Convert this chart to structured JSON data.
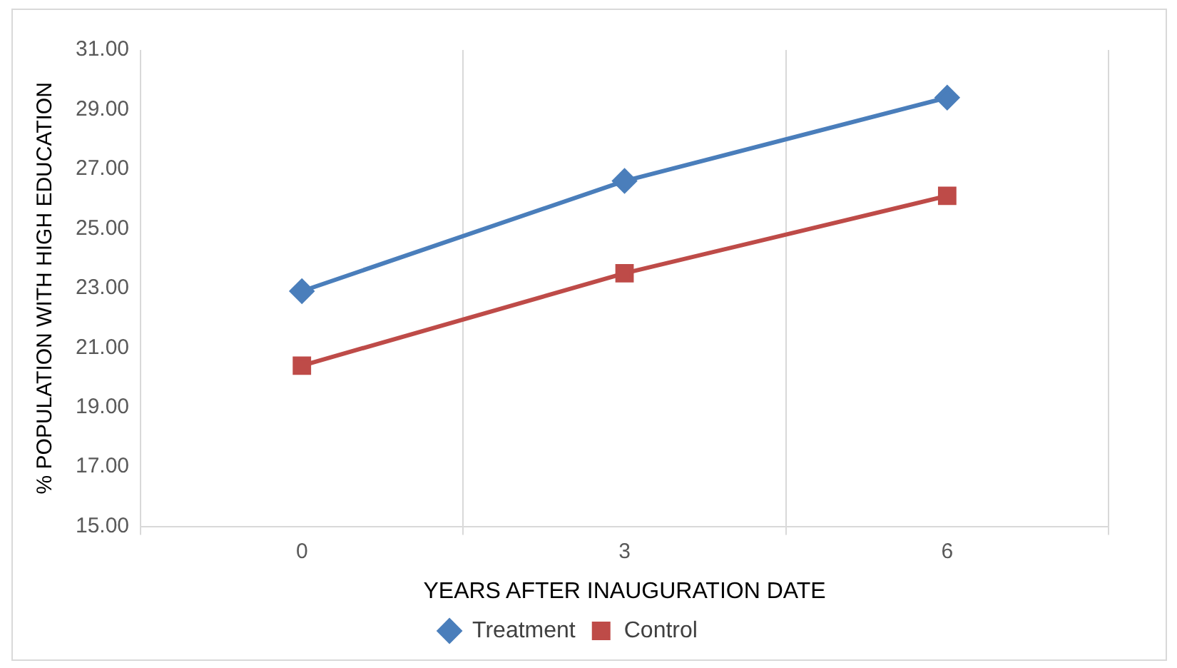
{
  "chart_data": {
    "type": "line",
    "xlabel": "YEARS AFTER INAUGURATION DATE",
    "ylabel": "% POPULATION WITH HIGH EDUCATION",
    "categories": [
      "0",
      "3",
      "6"
    ],
    "series": [
      {
        "name": "Treatment",
        "color": "#4a7ebb",
        "marker": "diamond",
        "values": [
          22.9,
          26.6,
          29.4
        ]
      },
      {
        "name": "Control",
        "color": "#be4b48",
        "marker": "square",
        "values": [
          20.4,
          23.5,
          26.1
        ]
      }
    ],
    "ylim": [
      15,
      31
    ],
    "yticks": [
      {
        "value": 15,
        "label": "15.00"
      },
      {
        "value": 17,
        "label": "17.00"
      },
      {
        "value": 19,
        "label": "19.00"
      },
      {
        "value": 21,
        "label": "21.00"
      },
      {
        "value": 23,
        "label": "23.00"
      },
      {
        "value": 25,
        "label": "25.00"
      },
      {
        "value": 27,
        "label": "27.00"
      },
      {
        "value": 29,
        "label": "29.00"
      },
      {
        "value": 31,
        "label": "31.00"
      }
    ],
    "grid": "x",
    "legend": "bottom",
    "line_style": "solid"
  }
}
